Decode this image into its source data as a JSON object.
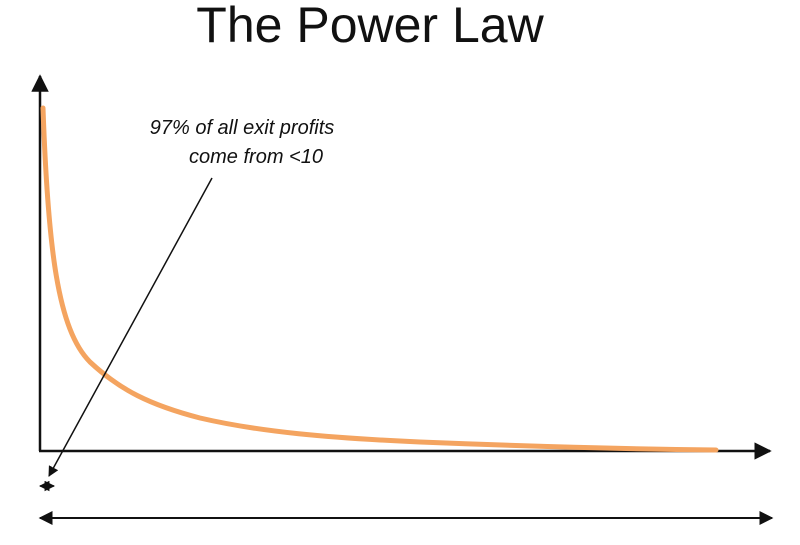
{
  "title": "The Power Law",
  "annotation": {
    "lines": [
      "97% of all exit profits",
      "come from <10"
    ]
  }
}
